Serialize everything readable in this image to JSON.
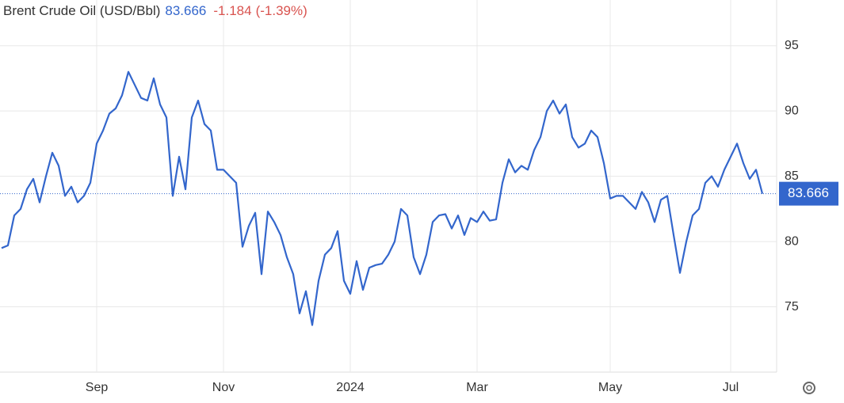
{
  "chart_data": {
    "type": "line",
    "title": "Brent Crude Oil (USD/Bbl)",
    "last_value": 83.666,
    "change": -1.184,
    "change_percent": {
      "value": -1.39,
      "label": "(-1.39%)"
    },
    "categories": [
      null,
      null,
      null,
      null,
      null,
      null,
      null,
      null,
      null,
      null,
      null,
      null,
      null,
      null,
      null,
      "Sep",
      null,
      null,
      null,
      null,
      null,
      null,
      null,
      null,
      null,
      null,
      null,
      null,
      null,
      null,
      null,
      null,
      null,
      null,
      null,
      "Nov",
      null,
      null,
      null,
      null,
      null,
      null,
      null,
      null,
      null,
      null,
      null,
      null,
      null,
      null,
      null,
      null,
      null,
      null,
      null,
      "2024",
      null,
      null,
      null,
      null,
      null,
      null,
      null,
      null,
      null,
      null,
      null,
      null,
      null,
      null,
      null,
      null,
      null,
      null,
      null,
      "Mar",
      null,
      null,
      null,
      null,
      null,
      null,
      null,
      null,
      null,
      null,
      null,
      null,
      null,
      null,
      null,
      null,
      null,
      null,
      null,
      null,
      "May",
      null,
      null,
      null,
      null,
      null,
      null,
      null,
      null,
      null,
      null,
      null,
      null,
      null,
      null,
      null,
      null,
      null,
      null,
      "Jul",
      null,
      null,
      null,
      null,
      null
    ],
    "series": [
      {
        "name": "Brent Crude Oil",
        "color": "#3366cc",
        "values": [
          79.5,
          79.7,
          82.0,
          82.5,
          84.0,
          84.8,
          83.0,
          85.0,
          86.8,
          85.8,
          83.5,
          84.2,
          83.0,
          83.5,
          84.5,
          87.5,
          88.5,
          89.8,
          90.2,
          91.2,
          93.0,
          92.0,
          91.0,
          90.8,
          92.5,
          90.5,
          89.5,
          83.5,
          86.5,
          84.0,
          89.5,
          90.8,
          89.0,
          88.5,
          85.5,
          85.5,
          85.0,
          84.5,
          79.6,
          81.2,
          82.2,
          77.5,
          82.3,
          81.5,
          80.5,
          78.8,
          77.5,
          74.5,
          76.2,
          73.6,
          77.0,
          79.0,
          79.5,
          80.8,
          77.0,
          76.0,
          78.5,
          76.3,
          78.0,
          78.2,
          78.3,
          79.0,
          80.0,
          82.5,
          82.0,
          78.8,
          77.5,
          79.0,
          81.5,
          82.0,
          82.1,
          81.0,
          82.0,
          80.5,
          81.8,
          81.5,
          82.3,
          81.6,
          81.7,
          84.5,
          86.3,
          85.3,
          85.8,
          85.5,
          87.0,
          88.0,
          90.0,
          90.8,
          89.8,
          90.5,
          88.0,
          87.2,
          87.5,
          88.5,
          88.0,
          86.0,
          83.3,
          83.5,
          83.5,
          83.0,
          82.5,
          83.8,
          83.0,
          81.5,
          83.2,
          83.5,
          80.5,
          77.6,
          80.0,
          82.0,
          82.5,
          84.5,
          85.0,
          84.2,
          85.5,
          86.5,
          87.5,
          86.0,
          84.8,
          85.5,
          83.666
        ]
      }
    ],
    "ylim": [
      70,
      98.5
    ],
    "yticks": [
      75,
      80,
      85,
      90,
      95
    ],
    "grid": true
  }
}
